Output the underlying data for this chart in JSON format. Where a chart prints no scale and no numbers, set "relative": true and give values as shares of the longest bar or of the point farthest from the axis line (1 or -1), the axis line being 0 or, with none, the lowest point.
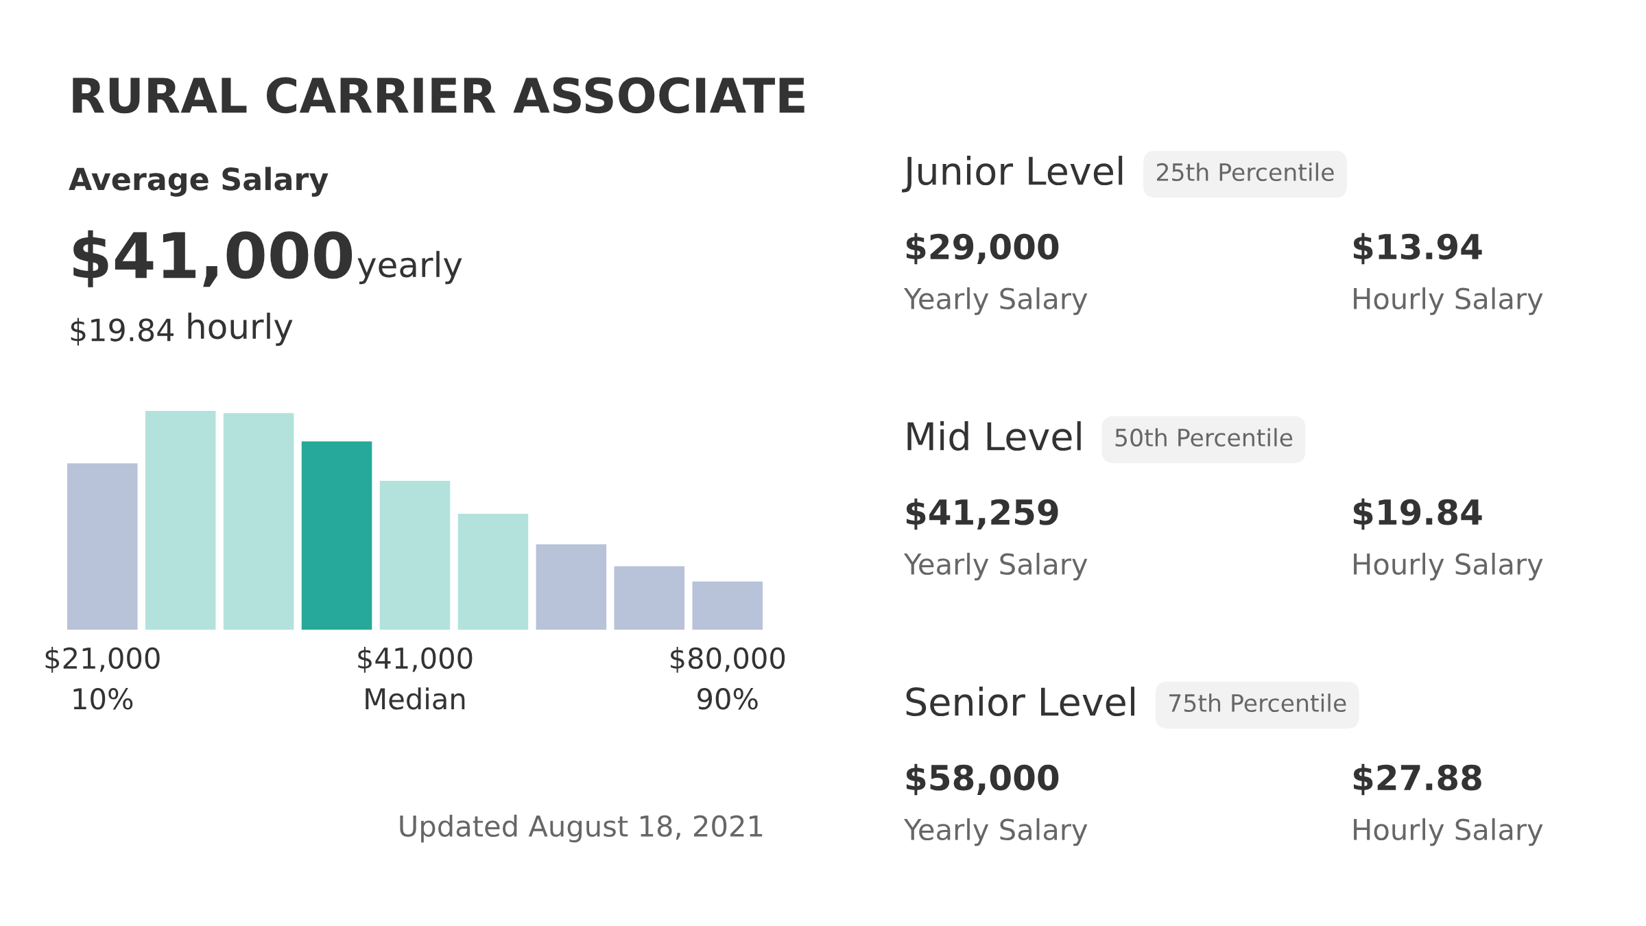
{
  "chart_data": [
    {
      "type": "bar",
      "relative": true,
      "title": "RURAL CARRIER ASSOCIATE",
      "categories": [
        "$21,000\n10%",
        null,
        null,
        null,
        "$41,000\nMedian",
        null,
        null,
        null,
        "$80,000\n90%"
      ],
      "values": [
        0.76,
        1,
        0.99,
        0.86,
        0.68,
        0.53,
        0.39,
        0.29,
        0.22
      ],
      "colors": [
        "#b8c2d8",
        "#b3e2dc",
        "#b3e2dc",
        "#26a99a",
        "#b3e2dc",
        "#b3e2dc",
        "#b8c2d8",
        "#b8c2d8",
        "#b8c2d8"
      ],
      "annotations": [
        "Average Salary",
        "$41,000",
        "yearly",
        "$19.84",
        "hourly",
        "Updated August 18, 2021"
      ]
    },
    {
      "type": "other",
      "annotations": [
        "Junior Level",
        "25th Percentile",
        "$29,000",
        "Yearly Salary",
        "$13.94",
        "Hourly Salary",
        "Mid Level",
        "50th Percentile",
        "$41,259",
        "Yearly Salary",
        "$19.84",
        "Hourly Salary",
        "Senior Level",
        "75th Percentile",
        "$58,000",
        "Yearly Salary",
        "$27.88",
        "Hourly Salary"
      ]
    }
  ]
}
